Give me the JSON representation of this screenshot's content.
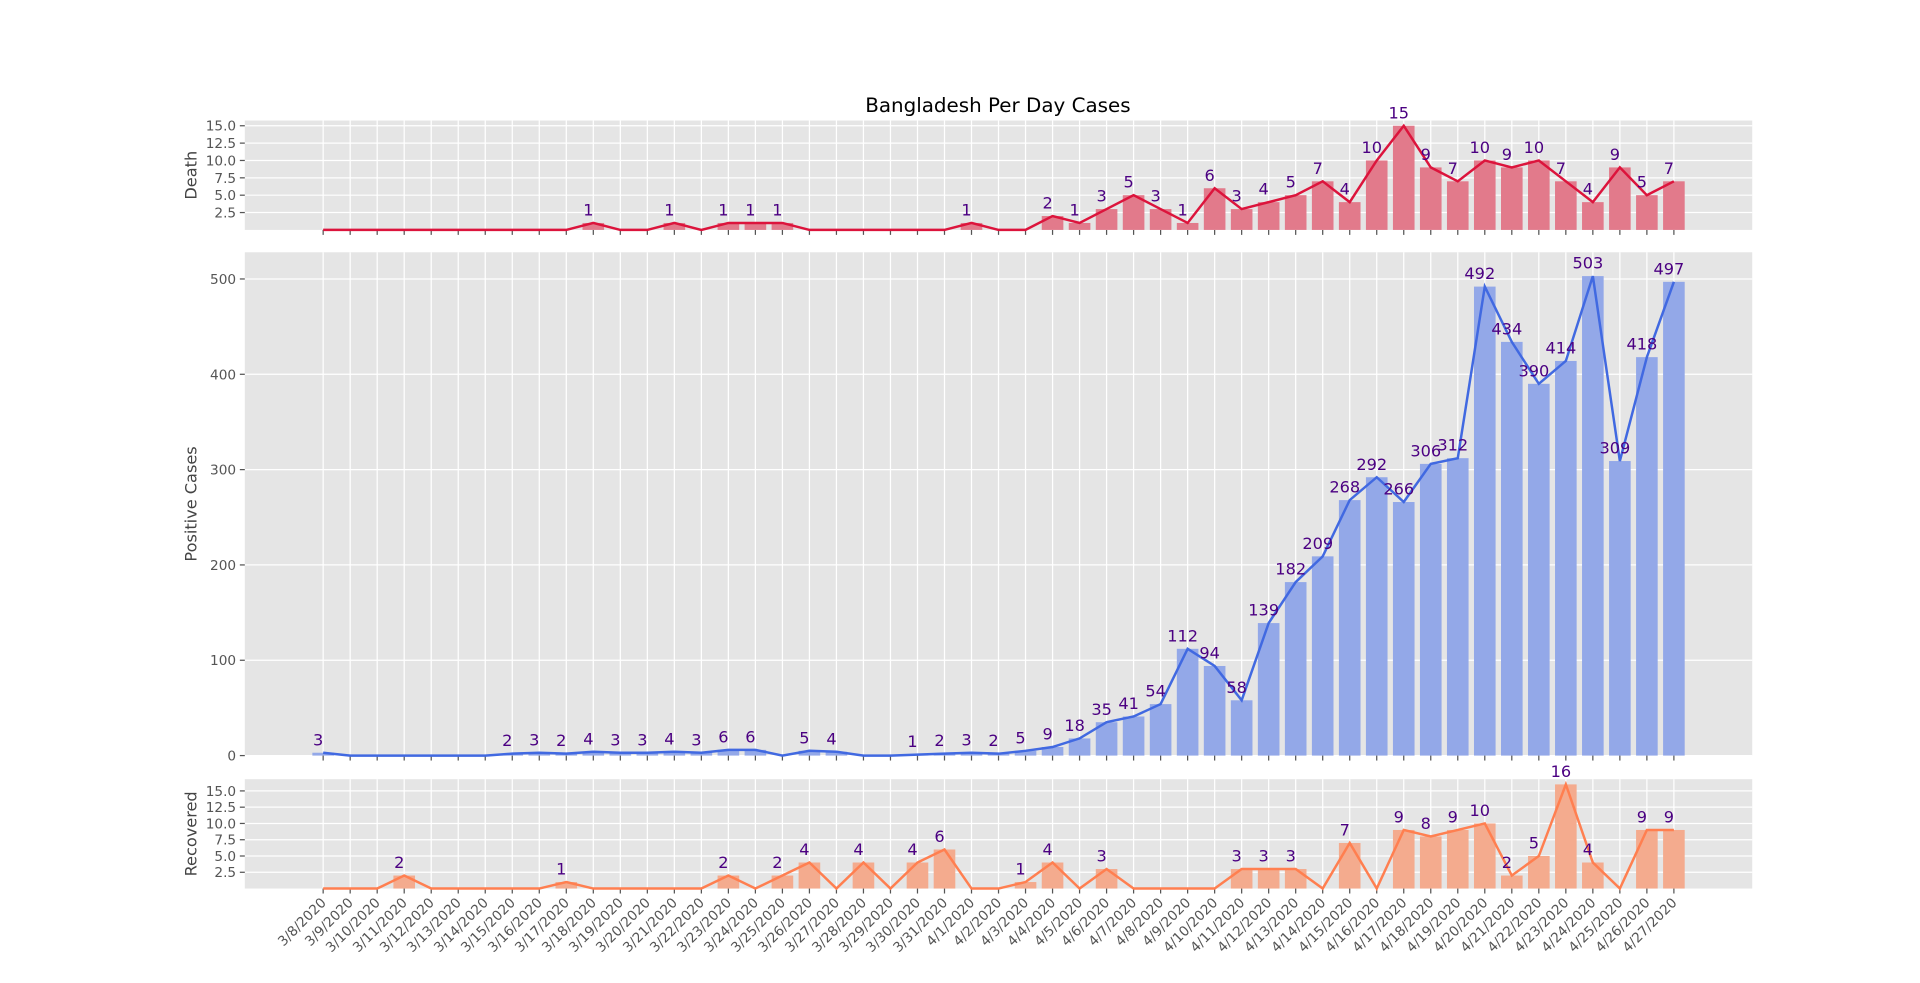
{
  "chart_data": [
    {
      "type": "bar",
      "title": "Bangladesh Per Day Cases",
      "ylabel": "Death",
      "values": [
        0,
        0,
        0,
        0,
        0,
        0,
        0,
        0,
        0,
        0,
        1,
        0,
        0,
        1,
        0,
        1,
        1,
        1,
        0,
        0,
        0,
        0,
        0,
        0,
        1,
        0,
        0,
        2,
        1,
        3,
        5,
        3,
        1,
        6,
        3,
        4,
        5,
        7,
        4,
        10,
        15,
        9,
        7,
        10,
        9,
        10,
        7,
        4,
        9,
        5,
        7
      ],
      "color": "#e27a8b",
      "line_color": "#dc143c",
      "ylim": [
        0,
        15.75
      ],
      "yticks": [
        {
          "value": 2.5,
          "label": "2.5"
        },
        {
          "value": 5,
          "label": "5.0"
        },
        {
          "value": 7.5,
          "label": "7.5"
        },
        {
          "value": 10,
          "label": "10.0"
        },
        {
          "value": 12.5,
          "label": "12.5"
        },
        {
          "value": 15,
          "label": "15.0"
        }
      ],
      "grid": true
    },
    {
      "type": "bar",
      "ylabel": "Positive Cases",
      "values": [
        3,
        0,
        0,
        0,
        0,
        0,
        0,
        2,
        3,
        2,
        4,
        3,
        3,
        4,
        3,
        6,
        6,
        0,
        5,
        4,
        0,
        0,
        1,
        2,
        3,
        2,
        5,
        9,
        18,
        35,
        41,
        54,
        112,
        94,
        58,
        139,
        182,
        209,
        268,
        292,
        266,
        306,
        312,
        492,
        434,
        390,
        414,
        503,
        309,
        418,
        497
      ],
      "color": "#93a8e8",
      "line_color": "#4169e1",
      "ylim": [
        0,
        528
      ],
      "yticks": [
        0,
        100,
        200,
        300,
        400,
        500
      ],
      "grid": true
    },
    {
      "type": "bar",
      "ylabel": "Recovered",
      "categories": [
        "3/8/2020",
        "3/9/2020",
        "3/10/2020",
        "3/11/2020",
        "3/12/2020",
        "3/13/2020",
        "3/14/2020",
        "3/15/2020",
        "3/16/2020",
        "3/17/2020",
        "3/18/2020",
        "3/19/2020",
        "3/20/2020",
        "3/21/2020",
        "3/22/2020",
        "3/23/2020",
        "3/24/2020",
        "3/25/2020",
        "3/26/2020",
        "3/27/2020",
        "3/28/2020",
        "3/29/2020",
        "3/30/2020",
        "3/31/2020",
        "4/1/2020",
        "4/2/2020",
        "4/3/2020",
        "4/4/2020",
        "4/5/2020",
        "4/6/2020",
        "4/7/2020",
        "4/8/2020",
        "4/9/2020",
        "4/10/2020",
        "4/11/2020",
        "4/12/2020",
        "4/13/2020",
        "4/14/2020",
        "4/15/2020",
        "4/16/2020",
        "4/17/2020",
        "4/18/2020",
        "4/19/2020",
        "4/20/2020",
        "4/21/2020",
        "4/22/2020",
        "4/23/2020",
        "4/24/2020",
        "4/25/2020",
        "4/26/2020",
        "4/27/2020"
      ],
      "values": [
        0,
        0,
        0,
        2,
        0,
        0,
        0,
        0,
        0,
        1,
        0,
        0,
        0,
        0,
        0,
        2,
        0,
        2,
        4,
        0,
        4,
        0,
        4,
        6,
        0,
        0,
        1,
        4,
        0,
        3,
        0,
        0,
        0,
        0,
        3,
        3,
        3,
        0,
        7,
        0,
        9,
        8,
        9,
        10,
        2,
        5,
        16,
        4,
        0,
        9,
        9
      ],
      "color": "#f4ab8e",
      "line_color": "#ff7f50",
      "ylim": [
        0,
        16.8
      ],
      "yticks": [
        {
          "value": 2.5,
          "label": "2.5"
        },
        {
          "value": 5,
          "label": "5.0"
        },
        {
          "value": 7.5,
          "label": "7.5"
        },
        {
          "value": 10,
          "label": "10.0"
        },
        {
          "value": 12.5,
          "label": "12.5"
        },
        {
          "value": 15,
          "label": "15.0"
        }
      ],
      "grid": true
    }
  ]
}
